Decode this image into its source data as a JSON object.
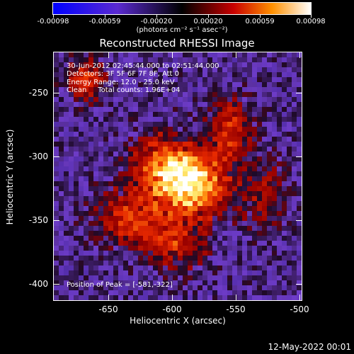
{
  "colorbar": {
    "ticks": [
      "-0.00098",
      "-0.00059",
      "-0.00020",
      "0.00020",
      "0.00059",
      "0.00098"
    ],
    "unit": "(photons cm⁻² s⁻¹ asec⁻²)"
  },
  "title": "Reconstructed RHESSI Image",
  "info": {
    "time": "30-Jun-2012 02:45:44.000 to 02:51:44.000",
    "detectors": "Detectors: 3F 5F 6F 7F 8F, Att 0",
    "energy": "Energy Range: 12.0 - 25.0 keV",
    "clean": "Clean     Total counts: 1.96E+04"
  },
  "peak": "Position of Peak = [-581,-322]",
  "axes": {
    "xlabel": "Heliocentric X (arcsec)",
    "ylabel": "Heliocentric Y (arcsec)",
    "xticks": [
      "-650",
      "-600",
      "-550",
      "-500"
    ],
    "yticks": [
      "-250",
      "-300",
      "-350",
      "-400"
    ]
  },
  "datestamp": "12-May-2022 00:01",
  "colors": {
    "background": "#000000",
    "colormap": [
      "#0000ff",
      "#6040c0",
      "#000000",
      "#c00000",
      "#ff8000",
      "#ffff80",
      "#ffffff"
    ]
  }
}
